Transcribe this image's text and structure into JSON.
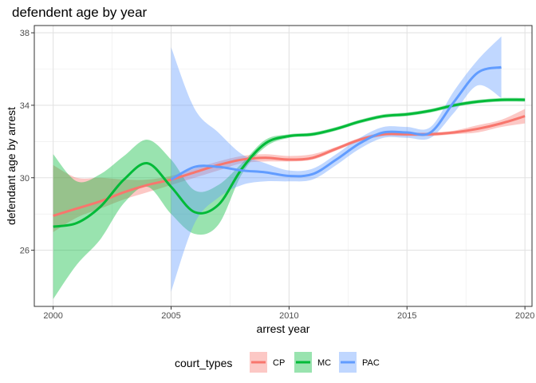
{
  "chart_data": {
    "type": "line",
    "title": "defendent age by year",
    "xlabel": "arrest year",
    "ylabel": "defendant age by arrest",
    "xlim": [
      1999.2,
      2020.3
    ],
    "ylim": [
      22.9,
      38.4
    ],
    "x_ticks": [
      2000,
      2005,
      2010,
      2015,
      2020
    ],
    "y_ticks": [
      26,
      30,
      34,
      38
    ],
    "grid": true,
    "legend": {
      "title": "court_types",
      "position": "bottom"
    },
    "series": [
      {
        "name": "CP",
        "color": "#F8766D",
        "x": [
          2000,
          2001,
          2002,
          2003,
          2004,
          2005,
          2006,
          2007,
          2008,
          2009,
          2010,
          2011,
          2012,
          2013,
          2014,
          2015,
          2016,
          2017,
          2018,
          2019,
          2020
        ],
        "y": [
          27.9,
          28.3,
          28.7,
          29.2,
          29.6,
          29.9,
          30.3,
          30.7,
          31.0,
          31.1,
          31.0,
          31.1,
          31.6,
          32.1,
          32.4,
          32.4,
          32.4,
          32.5,
          32.7,
          33.0,
          33.4
        ],
        "lower": [
          27.0,
          27.8,
          28.3,
          28.8,
          29.2,
          29.6,
          30.0,
          30.4,
          30.8,
          30.9,
          30.9,
          31.0,
          31.5,
          32.0,
          32.3,
          32.3,
          32.3,
          32.4,
          32.5,
          32.8,
          33.0
        ],
        "upper": [
          30.7,
          30.0,
          30.0,
          29.9,
          29.9,
          30.1,
          30.5,
          30.9,
          31.2,
          31.3,
          31.2,
          31.3,
          31.7,
          32.2,
          32.5,
          32.5,
          32.5,
          32.6,
          32.9,
          33.2,
          33.8
        ]
      },
      {
        "name": "MC",
        "color": "#00BA38",
        "x": [
          2000,
          2001,
          2002,
          2003,
          2004,
          2005,
          2006,
          2007,
          2008,
          2009,
          2010,
          2011,
          2012,
          2013,
          2014,
          2015,
          2016,
          2017,
          2018,
          2019,
          2020
        ],
        "y": [
          27.3,
          27.5,
          28.4,
          29.9,
          30.8,
          29.5,
          28.1,
          28.5,
          30.5,
          31.9,
          32.3,
          32.4,
          32.7,
          33.1,
          33.4,
          33.5,
          33.7,
          34.0,
          34.2,
          34.3,
          34.3
        ],
        "lower": [
          23.3,
          25.2,
          26.6,
          28.6,
          29.5,
          28.0,
          26.9,
          27.4,
          30.2,
          31.7,
          32.2,
          32.3,
          32.6,
          33.0,
          33.3,
          33.4,
          33.6,
          33.9,
          34.1,
          34.2,
          34.2
        ],
        "upper": [
          31.3,
          29.8,
          30.2,
          31.2,
          32.1,
          31.0,
          29.3,
          29.6,
          30.8,
          32.1,
          32.4,
          32.5,
          32.8,
          33.2,
          33.5,
          33.6,
          33.8,
          34.1,
          34.3,
          34.4,
          34.4
        ]
      },
      {
        "name": "PAC",
        "color": "#619CFF",
        "x": [
          2005,
          2006,
          2007,
          2008,
          2009,
          2010,
          2011,
          2012,
          2013,
          2014,
          2015,
          2016,
          2017,
          2018,
          2019
        ],
        "y": [
          29.9,
          30.6,
          30.6,
          30.4,
          30.3,
          30.1,
          30.2,
          31.0,
          31.9,
          32.5,
          32.5,
          32.5,
          34.2,
          35.8,
          36.1
        ],
        "lower": [
          23.7,
          27.5,
          28.9,
          29.6,
          29.8,
          29.8,
          29.9,
          30.7,
          31.6,
          32.2,
          32.2,
          32.2,
          33.6,
          35.1,
          34.4
        ],
        "upper": [
          37.2,
          33.8,
          32.5,
          31.3,
          30.8,
          30.4,
          30.5,
          31.3,
          32.2,
          32.8,
          32.8,
          32.8,
          34.8,
          36.5,
          37.8
        ]
      }
    ]
  }
}
